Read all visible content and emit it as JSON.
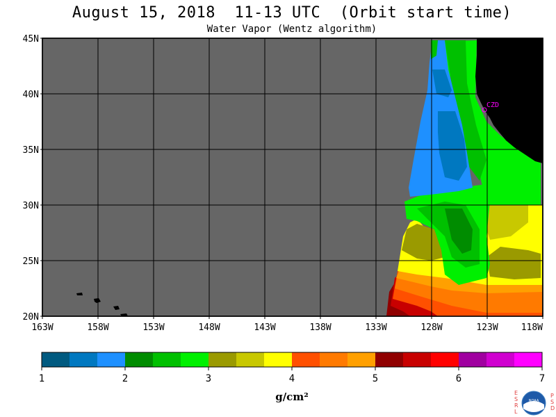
{
  "title": "August 15, 2018  11-13 UTC  (Orbit start time)",
  "subtitle": "Water Vapor (Wentz algorithm)",
  "lat_labels": [
    "45N",
    "40N",
    "35N",
    "30N",
    "25N",
    "20N"
  ],
  "lon_labels": [
    "163W",
    "158W",
    "153W",
    "148W",
    "143W",
    "138W",
    "133W",
    "128W",
    "123W",
    "118W"
  ],
  "station": "CZD",
  "colorbar": {
    "colors": [
      "#005a80",
      "#0078c0",
      "#1e90ff",
      "#008c00",
      "#00c000",
      "#00f000",
      "#9a9a00",
      "#c8c800",
      "#ffff00",
      "#ff5000",
      "#ff7a00",
      "#ffa000",
      "#900000",
      "#c80000",
      "#ff0000",
      "#a000a0",
      "#d000d0",
      "#ff00ff"
    ],
    "ticks": [
      "1",
      "2",
      "3",
      "4",
      "5",
      "6",
      "7"
    ],
    "units": "g/cm²"
  },
  "logo": {
    "left_letters": [
      "E",
      "S",
      "R",
      "L"
    ],
    "right_letters": [
      "P",
      "S",
      "D"
    ],
    "center": "NOAA"
  }
}
